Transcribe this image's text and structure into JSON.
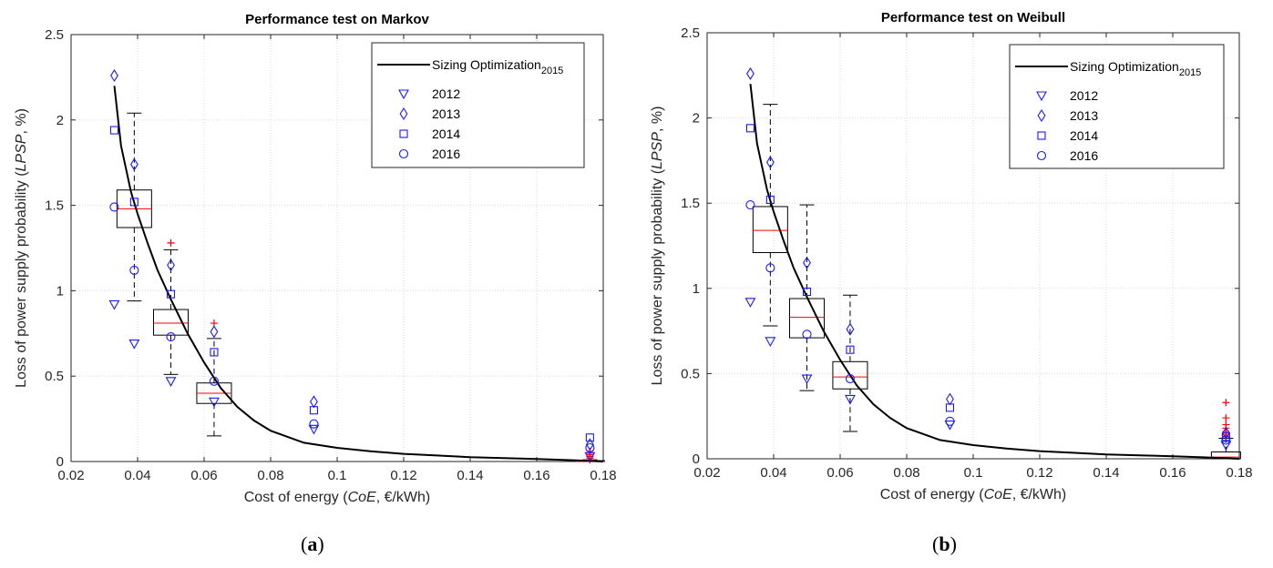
{
  "chart_data": [
    {
      "type": "scatter",
      "panel_label": "(a)",
      "title": "Performance test on Markov",
      "xlabel_parts": [
        "Cost of energy (",
        "CoE",
        ", €/kWh)"
      ],
      "ylabel_parts": [
        "Loss of power supply probability (",
        "LPSP",
        ", %)"
      ],
      "xlim": [
        0.02,
        0.18
      ],
      "ylim": [
        0,
        2.5
      ],
      "xticks": [
        0.02,
        0.04,
        0.06,
        0.08,
        0.1,
        0.12,
        0.14,
        0.16,
        0.18
      ],
      "xtick_labels": [
        "0.02",
        "0.04",
        "0.06",
        "0.08",
        "0.1",
        "0.12",
        "0.14",
        "0.16",
        "0.18"
      ],
      "yticks": [
        0,
        0.5,
        1,
        1.5,
        2,
        2.5
      ],
      "ytick_labels": [
        "0",
        "0.5",
        "1",
        "1.5",
        "2",
        "2.5"
      ],
      "grid": true,
      "legend_position": "top-right",
      "legend": {
        "line_label": "Sizing Optimization",
        "line_label_sub": "2015",
        "markers": [
          "2012",
          "2013",
          "2014",
          "2016"
        ]
      },
      "colors": {
        "markers": "#1a1aff",
        "median": "#ff0000",
        "outlier": "#ff0000",
        "curve": "#000000"
      },
      "curve": {
        "name": "Sizing Optimization2015",
        "x": [
          0.033,
          0.035,
          0.038,
          0.04,
          0.043,
          0.046,
          0.05,
          0.055,
          0.06,
          0.065,
          0.07,
          0.075,
          0.08,
          0.09,
          0.1,
          0.11,
          0.12,
          0.13,
          0.14,
          0.15,
          0.16,
          0.17,
          0.175,
          0.18
        ],
        "y": [
          2.2,
          1.85,
          1.58,
          1.45,
          1.28,
          1.12,
          0.95,
          0.75,
          0.58,
          0.43,
          0.32,
          0.24,
          0.18,
          0.11,
          0.08,
          0.06,
          0.045,
          0.035,
          0.025,
          0.02,
          0.015,
          0.008,
          0.004,
          0.0
        ]
      },
      "series": [
        {
          "name": "2012",
          "marker": "triangle-down",
          "x": [
            0.033,
            0.039,
            0.05,
            0.063,
            0.093,
            0.176
          ],
          "y": [
            0.92,
            0.69,
            0.47,
            0.35,
            0.19,
            0.03
          ]
        },
        {
          "name": "2013",
          "marker": "diamond",
          "x": [
            0.033,
            0.039,
            0.05,
            0.063,
            0.093,
            0.176
          ],
          "y": [
            2.26,
            1.74,
            1.15,
            0.76,
            0.35,
            0.1
          ]
        },
        {
          "name": "2014",
          "marker": "square",
          "x": [
            0.033,
            0.039,
            0.05,
            0.063,
            0.093,
            0.176
          ],
          "y": [
            1.94,
            1.52,
            0.98,
            0.64,
            0.3,
            0.14
          ]
        },
        {
          "name": "2016",
          "marker": "circle",
          "x": [
            0.033,
            0.039,
            0.05,
            0.063,
            0.093,
            0.176
          ],
          "y": [
            1.49,
            1.12,
            0.73,
            0.47,
            0.22,
            0.08
          ]
        }
      ],
      "boxplots": [
        {
          "x": 0.039,
          "whisker_low": 0.94,
          "q1": 1.37,
          "median": 1.48,
          "q3": 1.59,
          "whisker_high": 2.04,
          "outliers": []
        },
        {
          "x": 0.05,
          "whisker_low": 0.51,
          "q1": 0.74,
          "median": 0.81,
          "q3": 0.89,
          "whisker_high": 1.24,
          "outliers": [
            1.28
          ]
        },
        {
          "x": 0.063,
          "whisker_low": 0.15,
          "q1": 0.34,
          "median": 0.4,
          "q3": 0.46,
          "whisker_high": 0.72,
          "outliers": [
            0.81
          ]
        },
        {
          "x": 0.176,
          "whisker_low": 0.0,
          "q1": 0.0,
          "median": 0.0,
          "q3": 0.005,
          "whisker_high": 0.01,
          "outliers": [
            0.01,
            0.02,
            0.03,
            0.04,
            0.05,
            0.06
          ]
        }
      ]
    },
    {
      "type": "scatter",
      "panel_label": "(b)",
      "title": "Performance test on Weibull",
      "xlabel_parts": [
        "Cost of energy (",
        "CoE",
        ", €/kWh)"
      ],
      "ylabel_parts": [
        "Loss of power supply probability (",
        "LPSP",
        ", %)"
      ],
      "xlim": [
        0.02,
        0.18
      ],
      "ylim": [
        0,
        2.5
      ],
      "xticks": [
        0.02,
        0.04,
        0.06,
        0.08,
        0.1,
        0.12,
        0.14,
        0.16,
        0.18
      ],
      "xtick_labels": [
        "0.02",
        "0.04",
        "0.06",
        "0.08",
        "0.1",
        "0.12",
        "0.14",
        "0.16",
        "0.18"
      ],
      "yticks": [
        0,
        0.5,
        1,
        1.5,
        2,
        2.5
      ],
      "ytick_labels": [
        "0",
        "0.5",
        "1",
        "1.5",
        "2",
        "2.5"
      ],
      "grid": true,
      "legend_position": "top-right",
      "legend": {
        "line_label": "Sizing Optimization",
        "line_label_sub": "2015",
        "markers": [
          "2012",
          "2013",
          "2014",
          "2016"
        ]
      },
      "colors": {
        "markers": "#1a1aff",
        "median": "#ff0000",
        "outlier": "#ff0000",
        "curve": "#000000"
      },
      "curve": {
        "name": "Sizing Optimization2015",
        "x": [
          0.033,
          0.035,
          0.038,
          0.04,
          0.043,
          0.046,
          0.05,
          0.055,
          0.06,
          0.065,
          0.07,
          0.075,
          0.08,
          0.09,
          0.1,
          0.11,
          0.12,
          0.13,
          0.14,
          0.15,
          0.16,
          0.17,
          0.175,
          0.18
        ],
        "y": [
          2.2,
          1.85,
          1.58,
          1.45,
          1.28,
          1.12,
          0.95,
          0.75,
          0.58,
          0.43,
          0.32,
          0.24,
          0.18,
          0.11,
          0.08,
          0.06,
          0.045,
          0.035,
          0.025,
          0.02,
          0.015,
          0.008,
          0.004,
          0.0
        ]
      },
      "series": [
        {
          "name": "2012",
          "marker": "triangle-down",
          "x": [
            0.033,
            0.039,
            0.05,
            0.063,
            0.093,
            0.176
          ],
          "y": [
            0.92,
            0.69,
            0.47,
            0.35,
            0.2,
            0.08
          ]
        },
        {
          "name": "2013",
          "marker": "diamond",
          "x": [
            0.033,
            0.039,
            0.05,
            0.063,
            0.093,
            0.176
          ],
          "y": [
            2.26,
            1.74,
            1.15,
            0.76,
            0.35,
            0.15
          ]
        },
        {
          "name": "2014",
          "marker": "square",
          "x": [
            0.033,
            0.039,
            0.05,
            0.063,
            0.093,
            0.176
          ],
          "y": [
            1.94,
            1.52,
            0.98,
            0.64,
            0.3,
            0.13
          ]
        },
        {
          "name": "2016",
          "marker": "circle",
          "x": [
            0.033,
            0.039,
            0.05,
            0.063,
            0.093,
            0.176
          ],
          "y": [
            1.49,
            1.12,
            0.73,
            0.47,
            0.22,
            0.11
          ]
        }
      ],
      "boxplots": [
        {
          "x": 0.039,
          "whisker_low": 0.78,
          "q1": 1.21,
          "median": 1.34,
          "q3": 1.48,
          "whisker_high": 2.08,
          "outliers": []
        },
        {
          "x": 0.05,
          "whisker_low": 0.4,
          "q1": 0.71,
          "median": 0.83,
          "q3": 0.94,
          "whisker_high": 1.49,
          "outliers": []
        },
        {
          "x": 0.063,
          "whisker_low": 0.16,
          "q1": 0.41,
          "median": 0.48,
          "q3": 0.57,
          "whisker_high": 0.96,
          "outliers": []
        },
        {
          "x": 0.176,
          "whisker_low": 0.0,
          "q1": 0.0,
          "median": 0.01,
          "q3": 0.04,
          "whisker_high": 0.12,
          "outliers": [
            0.13,
            0.14,
            0.15,
            0.16,
            0.18,
            0.2,
            0.24,
            0.33
          ]
        }
      ]
    }
  ]
}
